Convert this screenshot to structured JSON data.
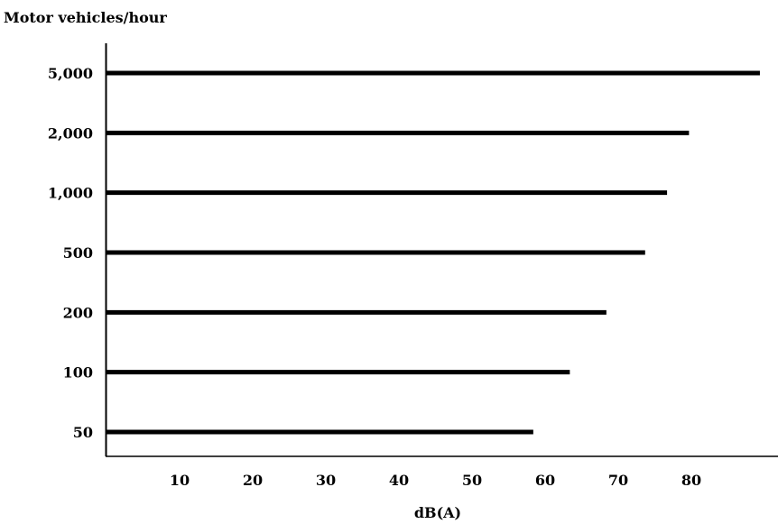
{
  "chart_data": {
    "type": "bar",
    "orientation": "horizontal",
    "ylabel": "Motor vehicles/hour",
    "xlabel": "dB(A)",
    "categories": [
      "50",
      "100",
      "200",
      "500",
      "1,000",
      "2,000",
      "5,000"
    ],
    "values": [
      58.5,
      63.5,
      68.5,
      73.8,
      76.8,
      79.8,
      89.5
    ],
    "x_ticks": [
      10,
      20,
      30,
      40,
      50,
      60,
      70,
      80
    ],
    "xlim": [
      0,
      89.5
    ],
    "grid": false,
    "bar_color": "#000000"
  }
}
